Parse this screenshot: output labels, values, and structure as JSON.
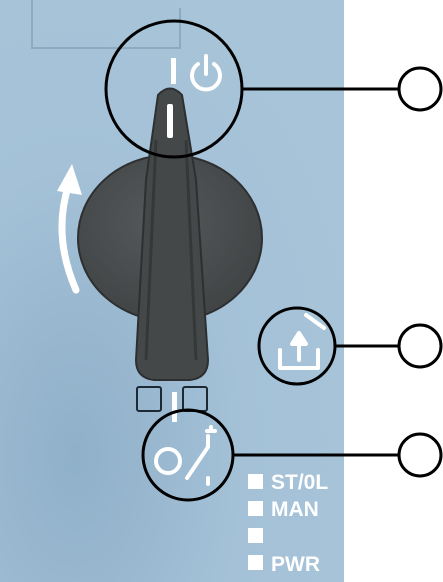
{
  "colors": {
    "panel": "#a4c1d7",
    "panel_shadow": "#8fb0c9",
    "knob_body": "#454849",
    "knob_edge": "#2d2f30",
    "symbol_white": "#ffffff",
    "outline": "#000000",
    "background": "#ffffff"
  },
  "icons": {
    "power_symbol": "power-icon",
    "rotation_arrow": "curved-arrow-icon",
    "reset_symbol": "reset-up-arrow-icon",
    "switch_symbol": "switch-contact-icon"
  },
  "status_leds": [
    {
      "label": "ST/0L"
    },
    {
      "label": "MAN"
    },
    {
      "label": ""
    },
    {
      "label": "PWR"
    }
  ],
  "callouts": [
    {
      "marker": "",
      "target": "power-symbol"
    },
    {
      "marker": "",
      "target": "reset-symbol"
    },
    {
      "marker": "",
      "target": "switch-symbol"
    }
  ]
}
